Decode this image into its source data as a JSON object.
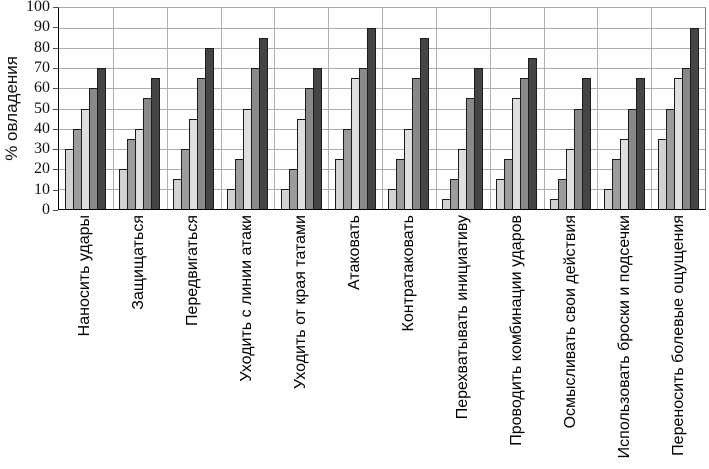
{
  "chart_data": {
    "type": "bar",
    "title": "",
    "xlabel": "",
    "ylabel": "% овладения",
    "ylim": [
      0,
      100
    ],
    "yticks": [
      0,
      10,
      20,
      30,
      40,
      50,
      60,
      70,
      80,
      90,
      100
    ],
    "grid": "on",
    "legend": "none",
    "categories": [
      "Наносить удары",
      "Защищаться",
      "Передвигаться",
      "Уходить с линии атаки",
      "Уходить от края татами",
      "Атаковать",
      "Контратаковать",
      "Перехватывать инициативу",
      "Проводить комбинации ударов",
      "Осмысливать свои действия",
      "Использовать броски и подсечки",
      "Переносить болевые ощущения"
    ],
    "series": [
      {
        "name": "series-1",
        "color": "#d2d2d2",
        "values": [
          30,
          20,
          15,
          10,
          10,
          25,
          10,
          5,
          15,
          5,
          10,
          35
        ]
      },
      {
        "name": "series-2",
        "color": "#9c9c9c",
        "values": [
          40,
          35,
          30,
          25,
          20,
          40,
          25,
          15,
          25,
          15,
          25,
          50
        ]
      },
      {
        "name": "series-3",
        "color": "#dfdfdf",
        "values": [
          50,
          40,
          45,
          50,
          45,
          65,
          40,
          30,
          55,
          30,
          35,
          65
        ]
      },
      {
        "name": "series-4",
        "color": "#898989",
        "values": [
          60,
          55,
          65,
          70,
          60,
          70,
          65,
          55,
          65,
          50,
          50,
          70
        ]
      },
      {
        "name": "series-5",
        "color": "#454545",
        "values": [
          70,
          65,
          80,
          85,
          70,
          90,
          85,
          70,
          75,
          65,
          65,
          90
        ]
      }
    ]
  },
  "colors": {
    "axis": "#000000",
    "grid": "#aeaeae",
    "bar_border": "#1c1c1c",
    "background": "#ffffff"
  }
}
